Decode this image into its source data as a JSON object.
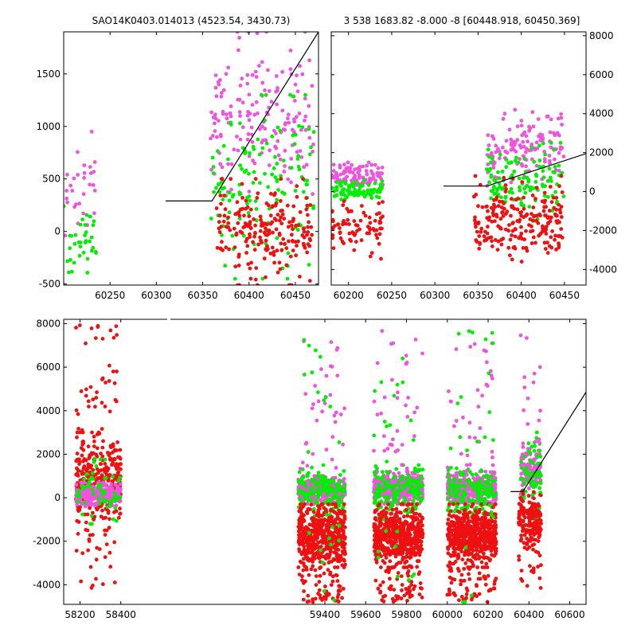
{
  "figure": {
    "colors": {
      "green": "#00ee00",
      "magenta": "#ee55dd",
      "red": "#ee1111",
      "model_line": "#000000"
    }
  },
  "chart_data": [
    {
      "type": "scatter",
      "title": "SAO14K0403.014013 (4523.54, 3430.73)",
      "xlim": [
        60200,
        60475
      ],
      "ylim": [
        -510,
        1900
      ],
      "x_ticks": [
        60250,
        60300,
        60350,
        60400,
        60450
      ],
      "y_ticks": [
        -500,
        0,
        500,
        1000,
        1500
      ],
      "y_axis_side": "left",
      "model_line": {
        "x": [
          60310,
          60360,
          60475
        ],
        "y": [
          290,
          290,
          1900
        ]
      },
      "clusters": [
        {
          "series": "magenta",
          "x_range": [
            60200,
            60235
          ],
          "y_range": [
            -100,
            950
          ],
          "count": 30
        },
        {
          "series": "green",
          "x_range": [
            60200,
            60235
          ],
          "y_range": [
            -500,
            300
          ],
          "count": 35
        },
        {
          "series": "magenta",
          "x_range": [
            60358,
            60470
          ],
          "y_range": [
            200,
            1900
          ],
          "count": 170
        },
        {
          "series": "green",
          "x_range": [
            60358,
            60470
          ],
          "y_range": [
            -450,
            1300
          ],
          "count": 140
        },
        {
          "series": "red",
          "x_range": [
            60365,
            60470
          ],
          "y_range": [
            -510,
            500
          ],
          "count": 210
        }
      ]
    },
    {
      "type": "scatter",
      "title": "3 538 1683.82 -8.000 -8 [60448.918, 60450.369]",
      "xlim": [
        60180,
        60475
      ],
      "ylim": [
        -4800,
        8200
      ],
      "x_ticks": [
        60200,
        60250,
        60300,
        60350,
        60400,
        60450
      ],
      "y_ticks": [
        -4000,
        -2000,
        0,
        2000,
        4000,
        6000,
        8000
      ],
      "y_axis_side": "right",
      "model_line": {
        "x": [
          60310,
          60360,
          60475
        ],
        "y": [
          280,
          280,
          1950
        ]
      },
      "clusters": [
        {
          "series": "magenta",
          "x_range": [
            60180,
            60240
          ],
          "y_range": [
            0,
            1500
          ],
          "count": 90
        },
        {
          "series": "green",
          "x_range": [
            60180,
            60240
          ],
          "y_range": [
            -400,
            600
          ],
          "count": 90
        },
        {
          "series": "red",
          "x_range": [
            60180,
            60240
          ],
          "y_range": [
            -3500,
            -500
          ],
          "count": 80
        },
        {
          "series": "magenta",
          "x_range": [
            60360,
            60450
          ],
          "y_range": [
            300,
            4200
          ],
          "count": 130
        },
        {
          "series": "green",
          "x_range": [
            60360,
            60450
          ],
          "y_range": [
            -1500,
            2500
          ],
          "count": 120
        },
        {
          "series": "red",
          "x_range": [
            60345,
            60450
          ],
          "y_range": [
            -3600,
            800
          ],
          "count": 220
        }
      ]
    },
    {
      "type": "scatter",
      "title": "",
      "xlim": [
        58120,
        60680
      ],
      "ylim": [
        -4900,
        8200
      ],
      "x_ticks": [
        58200,
        58400,
        59400,
        59600,
        59800,
        60000,
        60200,
        60400,
        60600
      ],
      "y_ticks": [
        -4000,
        -2000,
        0,
        2000,
        4000,
        6000,
        8000
      ],
      "y_axis_side": "left",
      "axis_break": "between 58400 and 59400",
      "model_line": {
        "x": [
          60310,
          60370,
          60680
        ],
        "y": [
          280,
          280,
          4850
        ]
      },
      "clusters": [
        {
          "series": "red",
          "x_range": [
            58180,
            58400
          ],
          "y_range": [
            -1500,
            3000
          ],
          "count": 320
        },
        {
          "series": "magenta",
          "x_range": [
            58180,
            58400
          ],
          "y_range": [
            -400,
            700
          ],
          "count": 260
        },
        {
          "series": "green",
          "x_range": [
            58180,
            58400
          ],
          "y_range": [
            -1200,
            2000
          ],
          "count": 60
        },
        {
          "series": "magenta",
          "x_range": [
            59270,
            59500
          ],
          "y_range": [
            -300,
            1000
          ],
          "count": 380
        },
        {
          "series": "green",
          "x_range": [
            59270,
            59500
          ],
          "y_range": [
            -1000,
            1500
          ],
          "count": 150
        },
        {
          "series": "red",
          "x_range": [
            59270,
            59500
          ],
          "y_range": [
            -3200,
            -300
          ],
          "count": 520
        },
        {
          "series": "magenta",
          "x_range": [
            59640,
            59880
          ],
          "y_range": [
            -300,
            1200
          ],
          "count": 380
        },
        {
          "series": "green",
          "x_range": [
            59640,
            59880
          ],
          "y_range": [
            -1000,
            1500
          ],
          "count": 150
        },
        {
          "series": "red",
          "x_range": [
            59640,
            59880
          ],
          "y_range": [
            -3200,
            -300
          ],
          "count": 520
        },
        {
          "series": "magenta",
          "x_range": [
            60000,
            60240
          ],
          "y_range": [
            -300,
            1200
          ],
          "count": 380
        },
        {
          "series": "green",
          "x_range": [
            60000,
            60240
          ],
          "y_range": [
            -1000,
            1500
          ],
          "count": 150
        },
        {
          "series": "red",
          "x_range": [
            60000,
            60240
          ],
          "y_range": [
            -3200,
            -300
          ],
          "count": 520
        },
        {
          "series": "magenta",
          "x_range": [
            60360,
            60460
          ],
          "y_range": [
            0,
            2500
          ],
          "count": 120
        },
        {
          "series": "green",
          "x_range": [
            60360,
            60460
          ],
          "y_range": [
            -1000,
            3000
          ],
          "count": 70
        },
        {
          "series": "red",
          "x_range": [
            60350,
            60460
          ],
          "y_range": [
            -2300,
            300
          ],
          "count": 170
        }
      ],
      "outliers": [
        {
          "series": "red",
          "x_range": [
            58180,
            58400
          ],
          "y_range": [
            3000,
            8000
          ],
          "count": 40
        },
        {
          "series": "red",
          "x_range": [
            58180,
            58400
          ],
          "y_range": [
            -4300,
            -1500
          ],
          "count": 25
        },
        {
          "series": "red",
          "x_range": [
            59270,
            59500
          ],
          "y_range": [
            -4800,
            -3200
          ],
          "count": 60
        },
        {
          "series": "magenta",
          "x_range": [
            59270,
            59500
          ],
          "y_range": [
            1000,
            7200
          ],
          "count": 35
        },
        {
          "series": "green",
          "x_range": [
            59270,
            59500
          ],
          "y_range": [
            -4800,
            7400
          ],
          "count": 30
        },
        {
          "series": "red",
          "x_range": [
            59640,
            59880
          ],
          "y_range": [
            -4800,
            -3200
          ],
          "count": 60
        },
        {
          "series": "magenta",
          "x_range": [
            59640,
            59880
          ],
          "y_range": [
            1200,
            7800
          ],
          "count": 35
        },
        {
          "series": "green",
          "x_range": [
            59640,
            59880
          ],
          "y_range": [
            -4800,
            6500
          ],
          "count": 30
        },
        {
          "series": "red",
          "x_range": [
            60000,
            60240
          ],
          "y_range": [
            -4800,
            -3200
          ],
          "count": 60
        },
        {
          "series": "magenta",
          "x_range": [
            60000,
            60240
          ],
          "y_range": [
            1200,
            8000
          ],
          "count": 35
        },
        {
          "series": "green",
          "x_range": [
            60000,
            60240
          ],
          "y_range": [
            -4800,
            8000
          ],
          "count": 30
        },
        {
          "series": "magenta",
          "x_range": [
            60360,
            60460
          ],
          "y_range": [
            2500,
            7500
          ],
          "count": 15
        },
        {
          "series": "red",
          "x_range": [
            60350,
            60460
          ],
          "y_range": [
            -4400,
            -2300
          ],
          "count": 20
        }
      ]
    }
  ]
}
